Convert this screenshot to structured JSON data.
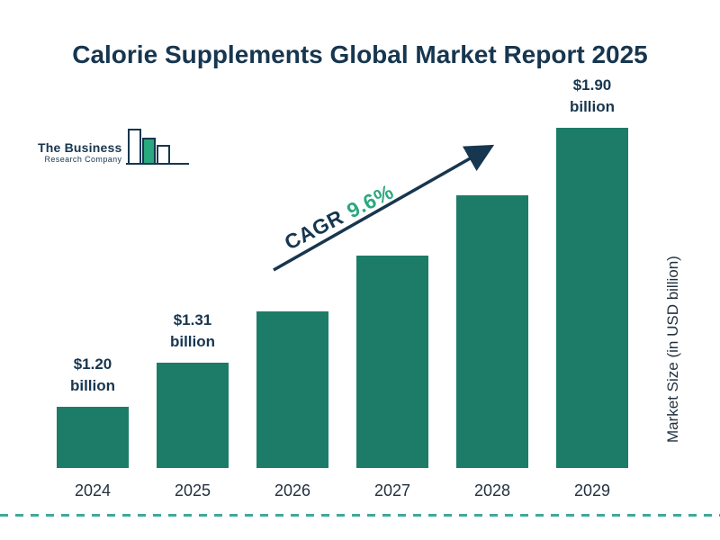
{
  "header": {
    "title": "Calorie Supplements Global Market Report 2025"
  },
  "logo": {
    "line1": "The Business",
    "line2": "Research Company"
  },
  "annotation": {
    "cagr_label": "CAGR",
    "cagr_value": "9.6%"
  },
  "axis": {
    "y_label": "Market Size (in USD billion)"
  },
  "chart_data": {
    "type": "bar",
    "title": "Calorie Supplements Global Market Report 2025",
    "categories": [
      "2024",
      "2025",
      "2026",
      "2027",
      "2028",
      "2029"
    ],
    "values": [
      1.2,
      1.31,
      1.44,
      1.58,
      1.73,
      1.9
    ],
    "bar_labels": [
      {
        "value_text": "$1.20",
        "unit_text": "billion"
      },
      {
        "value_text": "$1.31",
        "unit_text": "billion"
      },
      null,
      null,
      null,
      {
        "value_text": "$1.90",
        "unit_text": "billion"
      }
    ],
    "xlabel": "",
    "ylabel": "Market Size (in USD billion)",
    "legend": "none",
    "grid": "off",
    "bar_color": "#1d7c68",
    "cagr_percent": 9.6
  },
  "colors": {
    "title": "#17364f",
    "bar": "#1d7c68",
    "accent_green": "#2aa87e",
    "arrow": "#17364f",
    "dashed_line": "#3fa89c"
  }
}
